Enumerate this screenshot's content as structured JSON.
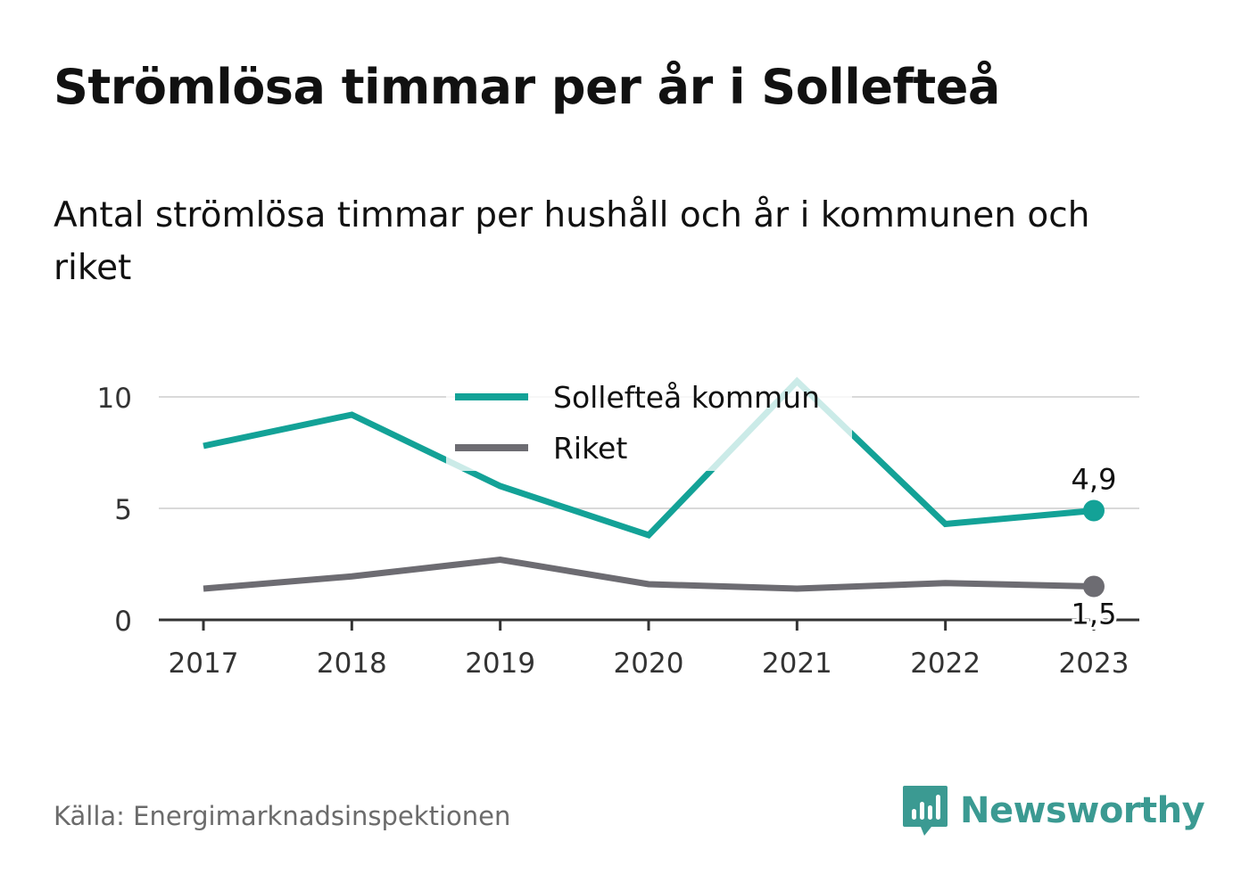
{
  "title": "Strömlösa timmar per år i Sollefteå",
  "subtitle": "Antal strömlösa timmar per hushåll och år i kommunen och riket",
  "source": "Källa: Energimarknadsinspektionen",
  "brand": {
    "name": "Newsworthy",
    "icon": "newsworthy-logo-icon",
    "color": "#3b9a92"
  },
  "chart_data": {
    "type": "line",
    "x": [
      "2017",
      "2018",
      "2019",
      "2020",
      "2021",
      "2022",
      "2023"
    ],
    "ylim": [
      0,
      10
    ],
    "yticks": [
      0,
      5,
      10
    ],
    "grid": true,
    "legend_position": "top-center",
    "series": [
      {
        "name": "Sollefteå kommun",
        "color": "#13a297",
        "values": [
          7.8,
          9.2,
          6.0,
          3.8,
          10.7,
          4.3,
          4.9
        ],
        "end_label": "4,9"
      },
      {
        "name": "Riket",
        "color": "#6d6c72",
        "values": [
          1.4,
          1.95,
          2.7,
          1.6,
          1.4,
          1.65,
          1.5
        ],
        "end_label": "1,5"
      }
    ]
  }
}
